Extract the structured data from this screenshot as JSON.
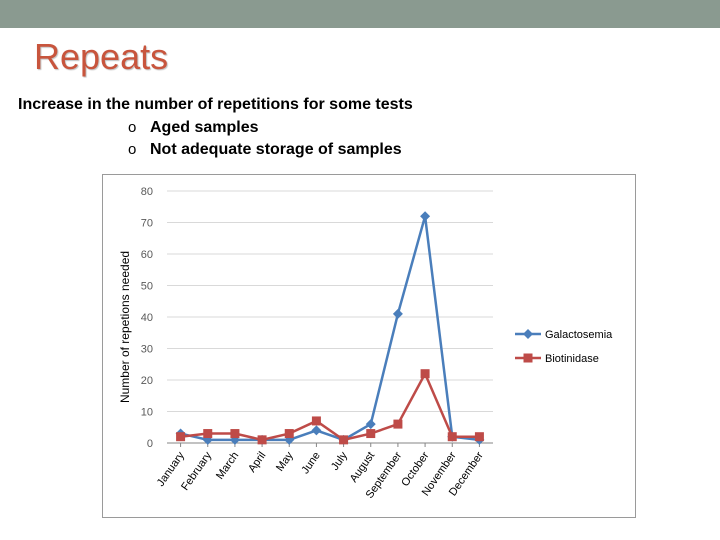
{
  "slide": {
    "title": "Repeats",
    "subtitle": "Increase in the number of repetitions for some tests",
    "bullet_marker": "o",
    "bullets": [
      "Aged samples",
      "Not adequate storage of samples"
    ],
    "top_bar_color": "#8a9a90",
    "title_color": "#c8553d"
  },
  "chart_data": {
    "type": "line",
    "title": "",
    "xlabel": "",
    "ylabel": "Number of repetions needed",
    "ylim": [
      0,
      80
    ],
    "yticks": [
      0,
      10,
      20,
      30,
      40,
      50,
      60,
      70,
      80
    ],
    "grid": true,
    "legend_position": "right",
    "categories": [
      "January",
      "February",
      "March",
      "April",
      "May",
      "June",
      "July",
      "August",
      "September",
      "October",
      "November",
      "December"
    ],
    "series": [
      {
        "name": "Galactosemia",
        "color": "#4a7ebb",
        "marker": "diamond",
        "values": [
          3,
          1,
          1,
          1,
          1,
          4,
          1,
          6,
          41,
          72,
          2,
          1
        ]
      },
      {
        "name": "Biotinidase",
        "color": "#be4b48",
        "marker": "square",
        "values": [
          2,
          3,
          3,
          1,
          3,
          7,
          1,
          3,
          6,
          22,
          2,
          2
        ]
      }
    ]
  }
}
